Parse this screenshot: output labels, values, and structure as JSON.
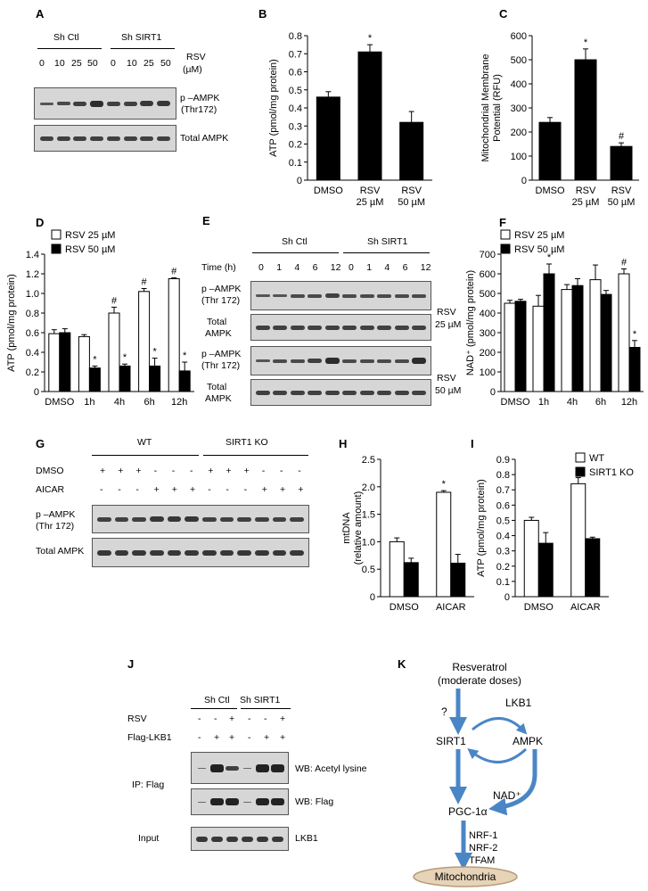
{
  "panels": {
    "A": {
      "letter": "A",
      "groups": [
        "Sh Ctl",
        "Sh SIRT1"
      ],
      "rsv_label": "RSV",
      "rsv_unit": "(µM)",
      "doses": [
        "0",
        "10",
        "25",
        "50",
        "0",
        "10",
        "25",
        "50"
      ],
      "blot_labels": [
        "p –AMPK",
        "(Thr172)",
        "Total AMPK"
      ]
    },
    "E": {
      "letter": "E",
      "groups": [
        "Sh Ctl",
        "Sh SIRT1"
      ],
      "time_label": "Time (h)",
      "times": [
        "0",
        "1",
        "4",
        "6",
        "12",
        "0",
        "1",
        "4",
        "6",
        "12"
      ],
      "row_labels": [
        "p –AMPK",
        "(Thr 172)",
        "Total",
        "AMPK",
        "p –AMPK",
        "(Thr 172)",
        "Total",
        "AMPK"
      ],
      "side_labels": [
        "RSV",
        "25 µM",
        "RSV",
        "50 µM"
      ]
    },
    "G": {
      "letter": "G",
      "groups": [
        "WT",
        "SIRT1 KO"
      ],
      "row_names": [
        "DMSO",
        "AICAR"
      ],
      "dmso_signs": [
        "+",
        "+",
        "+",
        "-",
        "-",
        "-",
        "+",
        "+",
        "+",
        "-",
        "-",
        "-"
      ],
      "aicar_signs": [
        "-",
        "-",
        "-",
        "+",
        "+",
        "+",
        "-",
        "-",
        "-",
        "+",
        "+",
        "+"
      ],
      "blot_labels": [
        "p –AMPK",
        "(Thr 172)",
        "Total AMPK"
      ]
    },
    "J": {
      "letter": "J",
      "groups": [
        "Sh Ctl",
        "Sh SIRT1"
      ],
      "row_names": [
        "RSV",
        "Flag-LKB1"
      ],
      "rsv_signs": [
        "-",
        "-",
        "+",
        "-",
        "-",
        "+"
      ],
      "flag_signs": [
        "-",
        "+",
        "+",
        "-",
        "+",
        "+"
      ],
      "ip_label": "IP: Flag",
      "input_label": "Input",
      "wb_labels": [
        "WB: Acetyl lysine",
        "WB: Flag",
        "LKB1"
      ]
    },
    "K": {
      "letter": "K",
      "nodes": {
        "resveratrol": "Resveratrol",
        "doses": "(moderate doses)",
        "question": "?",
        "lkb1": "LKB1",
        "sirt1": "SIRT1",
        "ampk": "AMPK",
        "nad": "NAD⁺",
        "pgc": "PGC-1α",
        "nrf1": "NRF-1",
        "nrf2": "NRF-2",
        "tfam": "TFAM",
        "mito": "Mitochondria"
      }
    }
  },
  "chart_data": [
    {
      "panel": "B",
      "type": "bar",
      "categories": [
        [
          "DMSO"
        ],
        [
          "RSV",
          "25 µM"
        ],
        [
          "RSV",
          "50 µM"
        ]
      ],
      "values": [
        0.46,
        0.71,
        0.32
      ],
      "errors": [
        0.03,
        0.04,
        0.06
      ],
      "fills": [
        "#000000",
        "#000000",
        "#000000"
      ],
      "marks": [
        "",
        "*",
        ""
      ],
      "ylabel": "ATP (pmol/mg protein)",
      "ylim": [
        0,
        0.8
      ],
      "yticks": [
        "0",
        "0.1",
        "0.2",
        "0.3",
        "0.4",
        "0.5",
        "0.6",
        "0.7",
        "0.8"
      ]
    },
    {
      "panel": "C",
      "type": "bar",
      "categories": [
        [
          "DMSO"
        ],
        [
          "RSV",
          "25 µM"
        ],
        [
          "RSV",
          "50 µM"
        ]
      ],
      "values": [
        240,
        500,
        140
      ],
      "errors": [
        20,
        45,
        15
      ],
      "fills": [
        "#000000",
        "#000000",
        "#000000"
      ],
      "marks": [
        "",
        "*",
        "#"
      ],
      "ylabel": [
        "Mitochondrial Membrane",
        "Potential (RFU)"
      ],
      "ylim": [
        0,
        600
      ],
      "yticks": [
        "0",
        "100",
        "200",
        "300",
        "400",
        "500",
        "600"
      ]
    },
    {
      "panel": "D",
      "type": "bar",
      "categories": [
        "DMSO",
        "1h",
        "4h",
        "6h",
        "12h"
      ],
      "series": [
        {
          "name": "RSV 25 µM",
          "fill": "#ffffff",
          "values": [
            0.59,
            0.56,
            0.8,
            1.02,
            1.15
          ],
          "errors": [
            0.04,
            0.02,
            0.06,
            0.03,
            0.01
          ],
          "marks": [
            "",
            "",
            "#",
            "#",
            "#"
          ]
        },
        {
          "name": "RSV 50 µM",
          "fill": "#000000",
          "values": [
            0.6,
            0.24,
            0.26,
            0.26,
            0.21
          ],
          "errors": [
            0.04,
            0.02,
            0.02,
            0.08,
            0.09
          ],
          "marks": [
            "",
            "*",
            "*",
            "*",
            "*"
          ]
        }
      ],
      "ylabel": "ATP (pmol/mg protein)",
      "ylim": [
        0,
        1.4
      ],
      "yticks": [
        "0",
        "0.2",
        "0.4",
        "0.6",
        "0.8",
        "1.0",
        "1.2",
        "1.4"
      ],
      "legend": "top-left"
    },
    {
      "panel": "F",
      "type": "bar",
      "categories": [
        "DMSO",
        "1h",
        "4h",
        "6h",
        "12h"
      ],
      "series": [
        {
          "name": "RSV 25 µM",
          "fill": "#ffffff",
          "values": [
            450,
            435,
            520,
            570,
            600
          ],
          "errors": [
            15,
            55,
            25,
            75,
            25
          ],
          "marks": [
            "",
            "",
            "",
            "",
            "#"
          ]
        },
        {
          "name": "RSV 50 µM",
          "fill": "#000000",
          "values": [
            460,
            600,
            540,
            495,
            225
          ],
          "errors": [
            10,
            50,
            35,
            20,
            35
          ],
          "marks": [
            "",
            "*",
            "",
            "",
            "*"
          ]
        }
      ],
      "ylabel": "NAD⁺ (pmol/mg protein)",
      "ylim": [
        0,
        700
      ],
      "yticks": [
        "0",
        "100",
        "200",
        "300",
        "400",
        "500",
        "600",
        "700"
      ],
      "legend": "top-left"
    },
    {
      "panel": "H",
      "type": "bar",
      "categories": [
        "DMSO",
        "AICAR"
      ],
      "series": [
        {
          "name": "",
          "fill": "#ffffff",
          "values": [
            1.0,
            1.9
          ],
          "errors": [
            0.07,
            0.03
          ],
          "marks": [
            "",
            "*"
          ]
        },
        {
          "name": "",
          "fill": "#000000",
          "values": [
            0.62,
            0.61
          ],
          "errors": [
            0.08,
            0.16
          ],
          "marks": [
            "",
            ""
          ]
        }
      ],
      "ylabel": [
        "mtDNA",
        "(relative amount)"
      ],
      "ylim": [
        0,
        2.5
      ],
      "yticks": [
        "0",
        "0.5",
        "1.0",
        "1.5",
        "2.0",
        "2.5"
      ]
    },
    {
      "panel": "I",
      "type": "bar",
      "categories": [
        "DMSO",
        "AICAR"
      ],
      "series": [
        {
          "name": "WT",
          "fill": "#ffffff",
          "values": [
            0.5,
            0.74
          ],
          "errors": [
            0.02,
            0.04
          ],
          "marks": [
            "",
            "*"
          ]
        },
        {
          "name": "SIRT1 KO",
          "fill": "#000000",
          "values": [
            0.35,
            0.38
          ],
          "errors": [
            0.07,
            0.01
          ],
          "marks": [
            "",
            ""
          ]
        }
      ],
      "ylabel": "ATP (pmol/mg protein)",
      "ylim": [
        0,
        0.9
      ],
      "yticks": [
        "0",
        "0.1",
        "0.2",
        "0.3",
        "0.4",
        "0.5",
        "0.6",
        "0.7",
        "0.8",
        "0.9"
      ],
      "legend": "top-right"
    }
  ]
}
